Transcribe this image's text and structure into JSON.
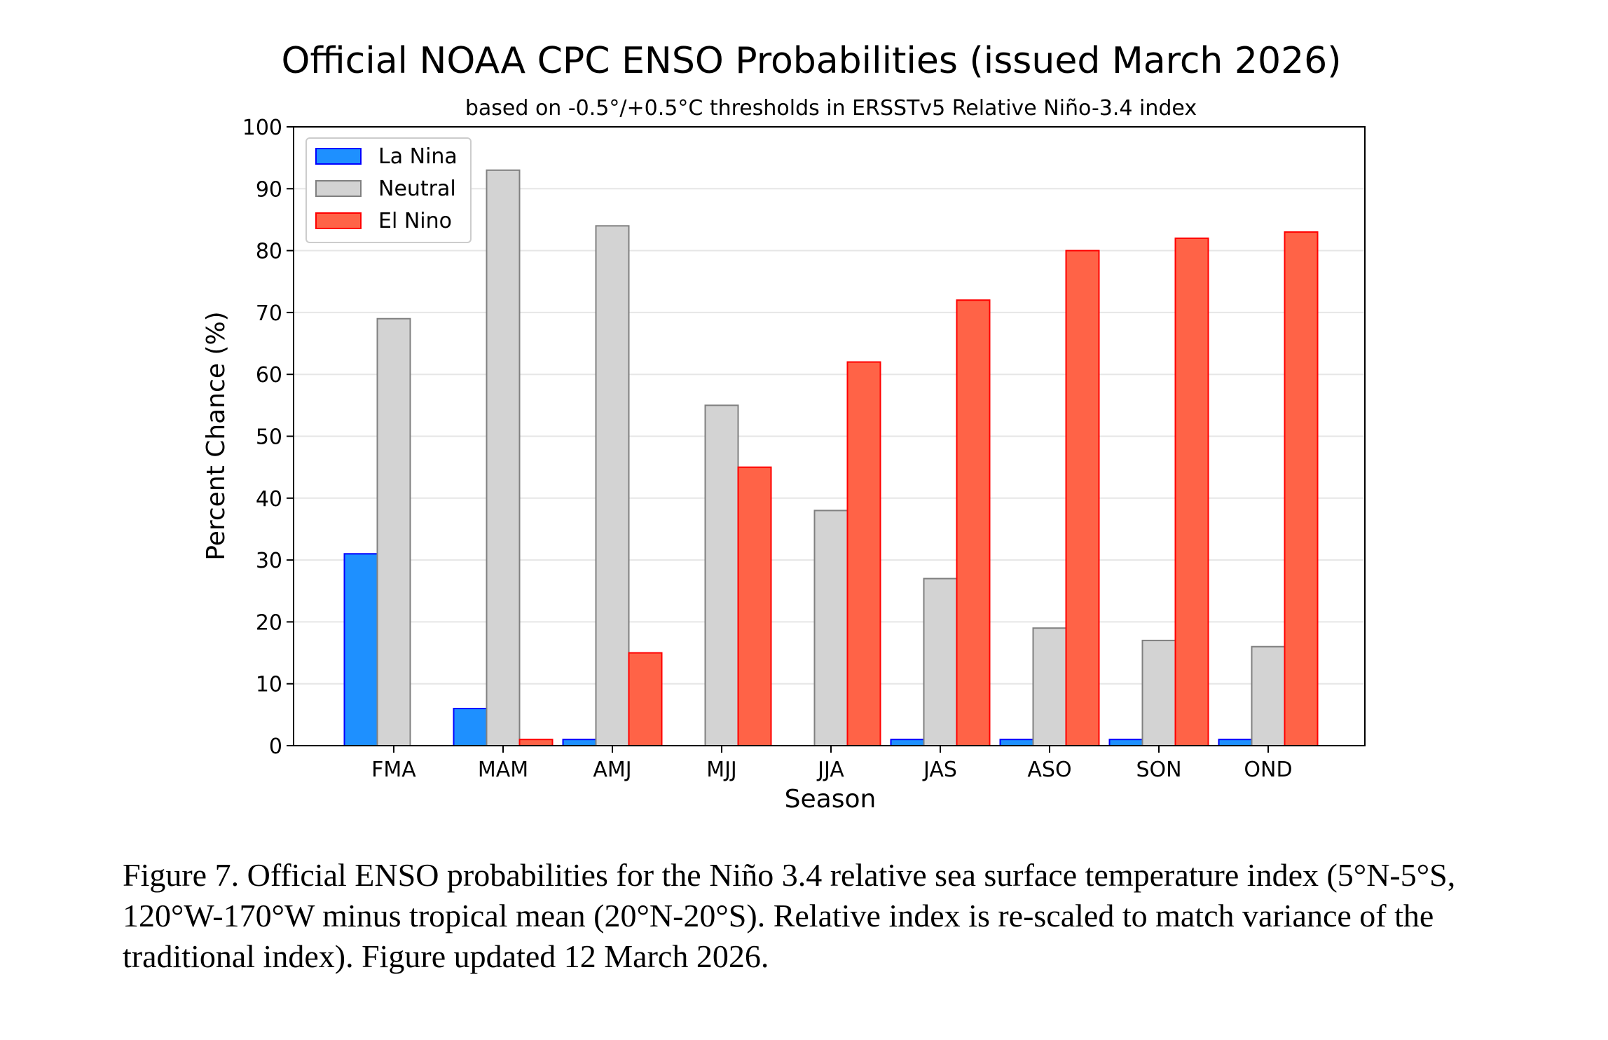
{
  "chart_data": {
    "type": "bar",
    "title": "Official NOAA CPC ENSO Probabilities (issued March 2026)",
    "subtitle": "based on -0.5°/+0.5°C thresholds in ERSSTv5 Relative Niño-3.4 index",
    "xlabel": "Season",
    "ylabel": "Percent Chance (%)",
    "ylim": [
      0,
      100
    ],
    "yticks": [
      0,
      10,
      20,
      30,
      40,
      50,
      60,
      70,
      80,
      90,
      100
    ],
    "grid": "horizontal",
    "legend_position": "top-left",
    "categories": [
      "FMA",
      "MAM",
      "AMJ",
      "MJJ",
      "JJA",
      "JAS",
      "ASO",
      "SON",
      "OND"
    ],
    "series": [
      {
        "name": "La Nina",
        "color": "#1e90ff",
        "edge": "#0000ff",
        "values": [
          31,
          6,
          1,
          0,
          0,
          1,
          1,
          1,
          1
        ]
      },
      {
        "name": "Neutral",
        "color": "#d3d3d3",
        "edge": "#808080",
        "values": [
          69,
          93,
          84,
          55,
          38,
          27,
          19,
          17,
          16
        ]
      },
      {
        "name": "El Nino",
        "color": "#ff6347",
        "edge": "#ff0000",
        "values": [
          0,
          1,
          15,
          45,
          62,
          72,
          80,
          82,
          83
        ]
      }
    ]
  },
  "caption": "Figure 7. Official ENSO probabilities for the Niño 3.4 relative sea surface temperature index (5°N-5°S, 120°W-170°W minus tropical mean (20°N-20°S). Relative index is re-scaled to match variance of the traditional index). Figure updated 12 March 2026."
}
